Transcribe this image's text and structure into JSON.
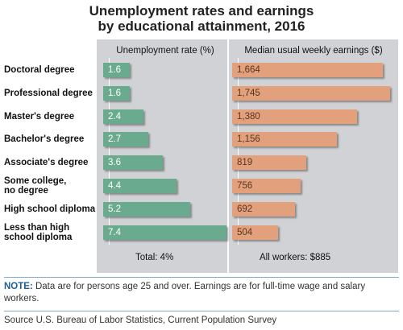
{
  "title_line1": "Unemployment rates and earnings",
  "title_line2": "by educational attainment, 2016",
  "colors": {
    "unemployment_bar": "#6aaa8e",
    "earnings_bar": "#e2a07c",
    "panel_bg": "#d0d2d5",
    "note_label": "#1f5f99"
  },
  "chart_data": [
    {
      "type": "bar",
      "orientation": "horizontal",
      "title": "Unemployment rate (%)",
      "categories": [
        "Doctoral degree",
        "Professional degree",
        "Master's degree",
        "Bachelor's degree",
        "Associate's degree",
        "Some college,\nno degree",
        "High school diploma",
        "Less than high\nschool diploma"
      ],
      "values": [
        1.6,
        1.6,
        2.4,
        2.7,
        3.6,
        4.4,
        5.2,
        7.4
      ],
      "value_labels": [
        "1.6",
        "1.6",
        "2.4",
        "2.7",
        "3.6",
        "4.4",
        "5.2",
        "7.4"
      ],
      "xlim": [
        0,
        7.4
      ],
      "footer": "Total: 4%"
    },
    {
      "type": "bar",
      "orientation": "horizontal",
      "title": "Median usual weekly earnings ($)",
      "categories": [
        "Doctoral degree",
        "Professional degree",
        "Master's degree",
        "Bachelor's degree",
        "Associate's degree",
        "Some college,\nno degree",
        "High school diploma",
        "Less than high\nschool diploma"
      ],
      "values": [
        1664,
        1745,
        1380,
        1156,
        819,
        756,
        692,
        504
      ],
      "value_labels": [
        "1,664",
        "1,745",
        "1,380",
        "1,156",
        "819",
        "756",
        "692",
        "504"
      ],
      "xlim": [
        0,
        1745
      ],
      "footer": "All workers: $885"
    }
  ],
  "note_label": "NOTE:",
  "note_text": " Data are for persons age 25 and over. Earnings are for full-time wage and salary workers.",
  "source": "Source U.S. Bureau of Labor Statistics, Current Population Survey"
}
